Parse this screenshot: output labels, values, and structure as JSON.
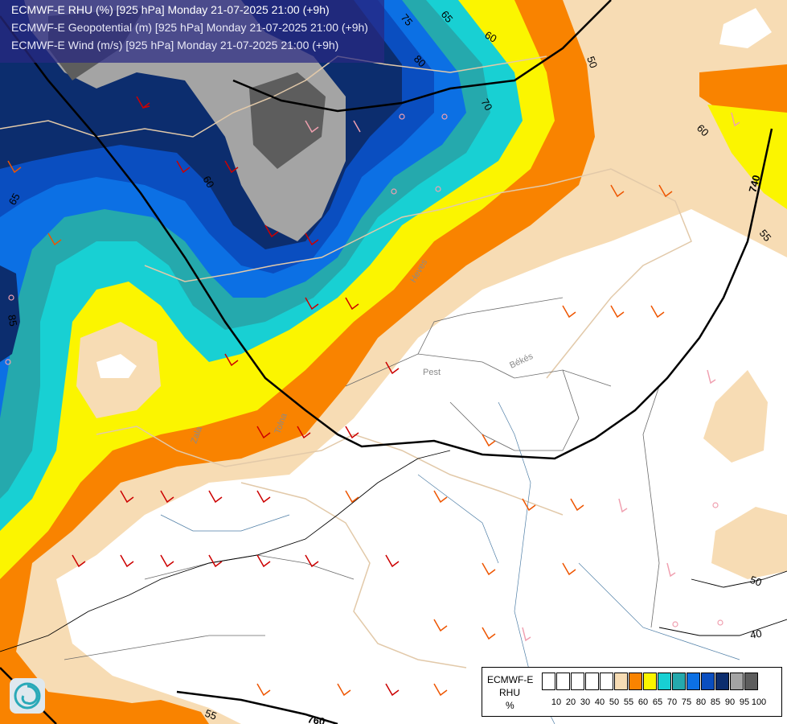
{
  "header": {
    "line1": "ECMWF-E RHU (%) [925 hPa] Monday 21-07-2025 21:00 (+9h)",
    "line2": "ECMWF-E Geopotential (m) [925 hPa] Monday 21-07-2025 21:00 (+9h)",
    "line3": "ECMWF-E Wind (m/s) [925 hPa] Monday 21-07-2025 21:00 (+9h)"
  },
  "contour_labels": [
    "75",
    "65",
    "60",
    "50",
    "80",
    "70",
    "60",
    "60",
    "85",
    "65",
    "740",
    "55",
    "50",
    "40",
    "55",
    "760"
  ],
  "place_labels": [
    "Pest",
    "Békés",
    "Zala",
    "Tolna",
    "Heves"
  ],
  "legend": {
    "model": "ECMWF-E",
    "variable": "RHU",
    "unit": "%",
    "ticks": [
      "10",
      "20",
      "30",
      "40",
      "50",
      "55",
      "60",
      "65",
      "70",
      "75",
      "80",
      "85",
      "90",
      "95",
      "100"
    ],
    "colors": [
      "#ffffff",
      "#ffffff",
      "#ffffff",
      "#ffffff",
      "#ffffff",
      "#f7dcb4",
      "#f98300",
      "#fbf500",
      "#18d0d3",
      "#25a9ad",
      "#0c70e4",
      "#0a4ec0",
      "#0c2d6e",
      "#a4a4a4",
      "#5d5d5d"
    ]
  },
  "logo_icon": "ecmwf-swirl-icon"
}
